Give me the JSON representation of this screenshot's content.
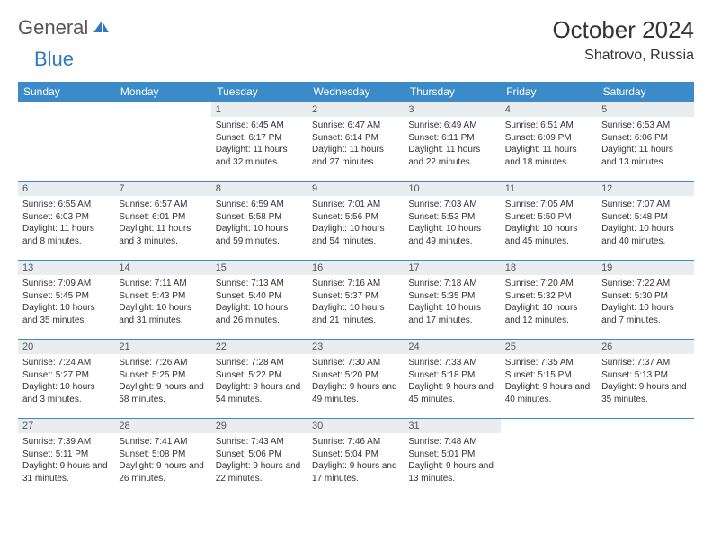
{
  "brand": {
    "part1": "General",
    "part2": "Blue"
  },
  "title": "October 2024",
  "location": "Shatrovo, Russia",
  "colors": {
    "headerBg": "#3b8bc9",
    "dayBg": "#e9edf0",
    "border": "#3b8bc9",
    "text": "#333333"
  },
  "dayNames": [
    "Sunday",
    "Monday",
    "Tuesday",
    "Wednesday",
    "Thursday",
    "Friday",
    "Saturday"
  ],
  "weeks": [
    [
      null,
      null,
      {
        "n": "1",
        "sr": "6:45 AM",
        "ss": "6:17 PM",
        "dl": "11 hours and 32 minutes."
      },
      {
        "n": "2",
        "sr": "6:47 AM",
        "ss": "6:14 PM",
        "dl": "11 hours and 27 minutes."
      },
      {
        "n": "3",
        "sr": "6:49 AM",
        "ss": "6:11 PM",
        "dl": "11 hours and 22 minutes."
      },
      {
        "n": "4",
        "sr": "6:51 AM",
        "ss": "6:09 PM",
        "dl": "11 hours and 18 minutes."
      },
      {
        "n": "5",
        "sr": "6:53 AM",
        "ss": "6:06 PM",
        "dl": "11 hours and 13 minutes."
      }
    ],
    [
      {
        "n": "6",
        "sr": "6:55 AM",
        "ss": "6:03 PM",
        "dl": "11 hours and 8 minutes."
      },
      {
        "n": "7",
        "sr": "6:57 AM",
        "ss": "6:01 PM",
        "dl": "11 hours and 3 minutes."
      },
      {
        "n": "8",
        "sr": "6:59 AM",
        "ss": "5:58 PM",
        "dl": "10 hours and 59 minutes."
      },
      {
        "n": "9",
        "sr": "7:01 AM",
        "ss": "5:56 PM",
        "dl": "10 hours and 54 minutes."
      },
      {
        "n": "10",
        "sr": "7:03 AM",
        "ss": "5:53 PM",
        "dl": "10 hours and 49 minutes."
      },
      {
        "n": "11",
        "sr": "7:05 AM",
        "ss": "5:50 PM",
        "dl": "10 hours and 45 minutes."
      },
      {
        "n": "12",
        "sr": "7:07 AM",
        "ss": "5:48 PM",
        "dl": "10 hours and 40 minutes."
      }
    ],
    [
      {
        "n": "13",
        "sr": "7:09 AM",
        "ss": "5:45 PM",
        "dl": "10 hours and 35 minutes."
      },
      {
        "n": "14",
        "sr": "7:11 AM",
        "ss": "5:43 PM",
        "dl": "10 hours and 31 minutes."
      },
      {
        "n": "15",
        "sr": "7:13 AM",
        "ss": "5:40 PM",
        "dl": "10 hours and 26 minutes."
      },
      {
        "n": "16",
        "sr": "7:16 AM",
        "ss": "5:37 PM",
        "dl": "10 hours and 21 minutes."
      },
      {
        "n": "17",
        "sr": "7:18 AM",
        "ss": "5:35 PM",
        "dl": "10 hours and 17 minutes."
      },
      {
        "n": "18",
        "sr": "7:20 AM",
        "ss": "5:32 PM",
        "dl": "10 hours and 12 minutes."
      },
      {
        "n": "19",
        "sr": "7:22 AM",
        "ss": "5:30 PM",
        "dl": "10 hours and 7 minutes."
      }
    ],
    [
      {
        "n": "20",
        "sr": "7:24 AM",
        "ss": "5:27 PM",
        "dl": "10 hours and 3 minutes."
      },
      {
        "n": "21",
        "sr": "7:26 AM",
        "ss": "5:25 PM",
        "dl": "9 hours and 58 minutes."
      },
      {
        "n": "22",
        "sr": "7:28 AM",
        "ss": "5:22 PM",
        "dl": "9 hours and 54 minutes."
      },
      {
        "n": "23",
        "sr": "7:30 AM",
        "ss": "5:20 PM",
        "dl": "9 hours and 49 minutes."
      },
      {
        "n": "24",
        "sr": "7:33 AM",
        "ss": "5:18 PM",
        "dl": "9 hours and 45 minutes."
      },
      {
        "n": "25",
        "sr": "7:35 AM",
        "ss": "5:15 PM",
        "dl": "9 hours and 40 minutes."
      },
      {
        "n": "26",
        "sr": "7:37 AM",
        "ss": "5:13 PM",
        "dl": "9 hours and 35 minutes."
      }
    ],
    [
      {
        "n": "27",
        "sr": "7:39 AM",
        "ss": "5:11 PM",
        "dl": "9 hours and 31 minutes."
      },
      {
        "n": "28",
        "sr": "7:41 AM",
        "ss": "5:08 PM",
        "dl": "9 hours and 26 minutes."
      },
      {
        "n": "29",
        "sr": "7:43 AM",
        "ss": "5:06 PM",
        "dl": "9 hours and 22 minutes."
      },
      {
        "n": "30",
        "sr": "7:46 AM",
        "ss": "5:04 PM",
        "dl": "9 hours and 17 minutes."
      },
      {
        "n": "31",
        "sr": "7:48 AM",
        "ss": "5:01 PM",
        "dl": "9 hours and 13 minutes."
      },
      null,
      null
    ]
  ],
  "labels": {
    "sunrise": "Sunrise:",
    "sunset": "Sunset:",
    "daylight": "Daylight:"
  }
}
